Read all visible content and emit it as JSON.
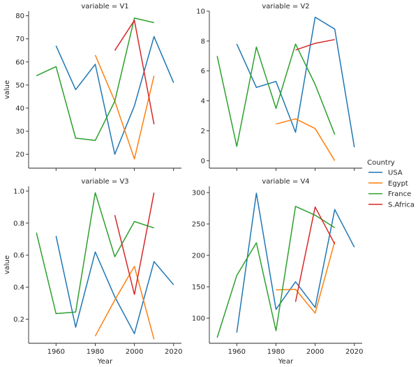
{
  "chart_data": {
    "type": "line",
    "xlabel": "Year",
    "ylabel": "value",
    "legend": {
      "title": "Country",
      "placement": "right",
      "entries": [
        "USA",
        "Egypt",
        "France",
        "S.Africa"
      ]
    },
    "colors": {
      "USA": "#1f77b4",
      "Egypt": "#ff7f0e",
      "France": "#2ca02c",
      "S.Africa": "#d62728"
    },
    "grid": false,
    "x_ticks": [
      1960,
      1980,
      2000,
      2020
    ],
    "panels": [
      {
        "title": "variable = V1",
        "xlim": [
          1946,
          2024
        ],
        "ylim": [
          14,
          82
        ],
        "y_ticks": [
          20,
          30,
          40,
          50,
          60,
          70,
          80
        ],
        "series": [
          {
            "name": "USA",
            "x": [
              1960,
              1970,
              1980,
              1990,
              2000,
              2010,
              2020
            ],
            "y": [
              67,
              48,
              59,
              20,
              41,
              71,
              51
            ]
          },
          {
            "name": "Egypt",
            "x": [
              1980,
              1990,
              2000,
              2010
            ],
            "y": [
              63,
              43,
              18,
              54
            ]
          },
          {
            "name": "France",
            "x": [
              1950,
              1960,
              1970,
              1980,
              1990,
              2000,
              2010
            ],
            "y": [
              54,
              58,
              27,
              26,
              43,
              79,
              77
            ]
          },
          {
            "name": "S.Africa",
            "x": [
              1990,
              2000,
              2010
            ],
            "y": [
              65,
              78,
              33
            ]
          }
        ]
      },
      {
        "title": "variable = V2",
        "xlim": [
          1946,
          2024
        ],
        "ylim": [
          -0.5,
          10
        ],
        "y_ticks": [
          0,
          2,
          4,
          6,
          8,
          10
        ],
        "series": [
          {
            "name": "USA",
            "x": [
              1960,
              1970,
              1980,
              1990,
              2000,
              2010,
              2020
            ],
            "y": [
              7.8,
              4.9,
              5.3,
              1.9,
              9.6,
              8.8,
              0.9
            ]
          },
          {
            "name": "Egypt",
            "x": [
              1980,
              1990,
              2000,
              2010
            ],
            "y": [
              2.45,
              2.8,
              2.15,
              0.0
            ]
          },
          {
            "name": "France",
            "x": [
              1950,
              1960,
              1970,
              1980,
              1990,
              2000,
              2010
            ],
            "y": [
              7.0,
              0.95,
              7.6,
              3.5,
              7.8,
              5.1,
              1.75
            ]
          },
          {
            "name": "S.Africa",
            "x": [
              1990,
              2000,
              2010
            ],
            "y": [
              7.4,
              7.85,
              8.1
            ]
          }
        ]
      },
      {
        "title": "variable = V3",
        "xlim": [
          1946,
          2024
        ],
        "ylim": [
          0.05,
          1.03
        ],
        "y_ticks": [
          0.2,
          0.4,
          0.6,
          0.8,
          1.0
        ],
        "y_tick_labels": [
          "0.2",
          "0.4",
          "0.6",
          "0.8",
          "1.0"
        ],
        "series": [
          {
            "name": "USA",
            "x": [
              1960,
              1970,
              1980,
              1990,
              2000,
              2010,
              2020
            ],
            "y": [
              0.72,
              0.15,
              0.62,
              0.34,
              0.11,
              0.56,
              0.415
            ]
          },
          {
            "name": "Egypt",
            "x": [
              1980,
              1990,
              2000,
              2010
            ],
            "y": [
              0.095,
              0.32,
              0.53,
              0.075
            ]
          },
          {
            "name": "France",
            "x": [
              1950,
              1960,
              1970,
              1980,
              1990,
              2000,
              2010
            ],
            "y": [
              0.74,
              0.235,
              0.245,
              0.99,
              0.59,
              0.81,
              0.77
            ]
          },
          {
            "name": "S.Africa",
            "x": [
              1990,
              2000,
              2010
            ],
            "y": [
              0.85,
              0.355,
              0.99
            ]
          }
        ]
      },
      {
        "title": "variable = V4",
        "xlim": [
          1946,
          2024
        ],
        "ylim": [
          60,
          310
        ],
        "y_ticks": [
          100,
          150,
          200,
          250,
          300
        ],
        "series": [
          {
            "name": "USA",
            "x": [
              1960,
              1970,
              1980,
              1990,
              2000,
              2010,
              2020
            ],
            "y": [
              77,
              299,
              114,
              158,
              117,
              273,
              213
            ]
          },
          {
            "name": "Egypt",
            "x": [
              1980,
              1990,
              2000,
              2010
            ],
            "y": [
              145,
              146,
              108,
              222
            ]
          },
          {
            "name": "France",
            "x": [
              1950,
              1960,
              1970,
              1980,
              1990,
              2000,
              2010
            ],
            "y": [
              69,
              168,
              220,
              80,
              278,
              264,
              244
            ]
          },
          {
            "name": "S.Africa",
            "x": [
              1990,
              2000,
              2010
            ],
            "y": [
              126,
              277,
              218
            ]
          }
        ]
      }
    ]
  }
}
